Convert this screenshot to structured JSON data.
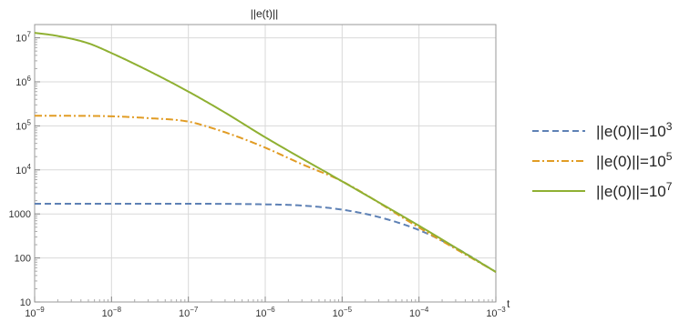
{
  "chart_data": {
    "type": "line",
    "title": "||e(t)||",
    "xlabel": "t",
    "ylabel": "",
    "xscale": "log",
    "yscale": "log",
    "xlim": [
      1e-09,
      0.001
    ],
    "ylim": [
      10,
      20000000.0
    ],
    "grid": true,
    "legend_position": "right",
    "x_ticks": [
      {
        "value": 1e-09,
        "base": "10",
        "exp": "−9"
      },
      {
        "value": 1e-08,
        "base": "10",
        "exp": "−8"
      },
      {
        "value": 1e-07,
        "base": "10",
        "exp": "−7"
      },
      {
        "value": 1e-06,
        "base": "10",
        "exp": "−6"
      },
      {
        "value": 1e-05,
        "base": "10",
        "exp": "−5"
      },
      {
        "value": 0.0001,
        "base": "10",
        "exp": "−4"
      },
      {
        "value": 0.001,
        "base": "10",
        "exp": "−3"
      }
    ],
    "y_ticks": [
      {
        "value": 10,
        "base": "10",
        "exp": ""
      },
      {
        "value": 100,
        "base": "100",
        "exp": ""
      },
      {
        "value": 1000,
        "base": "1000",
        "exp": ""
      },
      {
        "value": 10000,
        "base": "10",
        "exp": "4"
      },
      {
        "value": 100000,
        "base": "10",
        "exp": "5"
      },
      {
        "value": 1000000,
        "base": "10",
        "exp": "6"
      },
      {
        "value": 10000000,
        "base": "10",
        "exp": "7"
      }
    ],
    "series": [
      {
        "name": "||e(0)||=10^3",
        "legend_base": "||e(0)||=10",
        "legend_exp": "3",
        "color": "#5e81b5",
        "style": "dashed",
        "x": [
          1e-09,
          1e-08,
          1e-07,
          1e-06,
          3e-06,
          1e-05,
          3e-05,
          0.0001,
          0.0003,
          0.001
        ],
        "y": [
          1700,
          1700,
          1700,
          1650,
          1550,
          1250,
          850,
          430,
          170,
          48
        ]
      },
      {
        "name": "||e(0)||=10^5",
        "legend_base": "||e(0)||=10",
        "legend_exp": "5",
        "color": "#e19c24",
        "style": "dashdot",
        "x": [
          1e-09,
          1e-08,
          3e-08,
          1e-07,
          2e-07,
          5e-07,
          1e-06,
          3e-06,
          1e-05,
          0.0001,
          0.001
        ],
        "y": [
          170000,
          165000,
          150000,
          125000,
          90000,
          52000,
          32000,
          13500,
          5500,
          490,
          48
        ]
      },
      {
        "name": "||e(0)||=10^7",
        "legend_base": "||e(0)||=10",
        "legend_exp": "7",
        "color": "#8fb032",
        "style": "solid",
        "x": [
          1e-09,
          2e-09,
          5e-09,
          1e-08,
          3e-08,
          1e-07,
          3e-07,
          1e-06,
          1e-05,
          0.0001,
          0.001
        ],
        "y": [
          13000000,
          11000000,
          7500000,
          4500000,
          1800000,
          600000,
          200000,
          55000,
          5500,
          540,
          48
        ]
      }
    ]
  }
}
